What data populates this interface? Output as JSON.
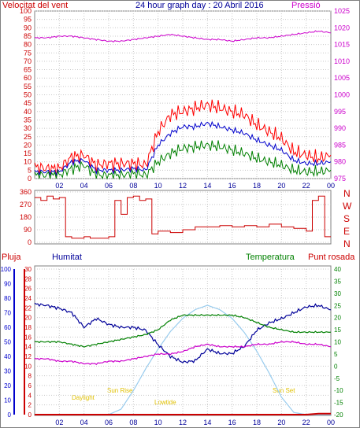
{
  "top_left_label": "Velocitat del vent",
  "title": "24 hour graph day : 20 Abril 2016",
  "top_right_label": "Pressió",
  "direction_letters": [
    "N",
    "W",
    "S",
    "E",
    "N"
  ],
  "lower_left_labels": [
    "Pluja",
    "Humitat"
  ],
  "lower_right_labels": [
    "Temperatura",
    "Punt rosada"
  ],
  "sun_labels": [
    "Daylight",
    "Sun Rise",
    "Lowtide",
    "Sun Set"
  ],
  "colors": {
    "wind_gust": "#ff0000",
    "wind_avg": "#0000cc",
    "wind_low": "#008000",
    "pressure": "#cc00cc",
    "direction": "#cc0000",
    "humidity": "#000099",
    "temperature": "#008000",
    "dewpoint": "#cc00cc",
    "solar": "#99ccee",
    "rain": "#cc0000",
    "grid": "#c8c8c8"
  },
  "chart_data": [
    {
      "type": "line",
      "name": "wind_pressure",
      "x_ticks": [
        "02",
        "04",
        "06",
        "08",
        "10",
        "12",
        "14",
        "16",
        "18",
        "20",
        "22",
        "00"
      ],
      "y_left_ticks": [
        "0",
        "5",
        "10",
        "15",
        "20",
        "25",
        "30",
        "35",
        "40",
        "45",
        "50",
        "55",
        "60",
        "65",
        "70",
        "75",
        "80",
        "85",
        "90",
        "95",
        "100"
      ],
      "y_right_ticks": [
        "975",
        "980",
        "985",
        "990",
        "995",
        "1000",
        "1005",
        "1010",
        "1015",
        "1020",
        "1025"
      ],
      "ylim_left": [
        0,
        100
      ],
      "ylim_right": [
        975,
        1025
      ],
      "x": [
        0,
        1,
        2,
        3,
        4,
        5,
        6,
        7,
        8,
        9,
        10,
        11,
        12,
        13,
        14,
        15,
        16,
        17,
        18,
        19,
        20,
        21,
        22,
        23,
        24
      ],
      "series": [
        {
          "key": "gust",
          "values": [
            7,
            6,
            6,
            13,
            14,
            8,
            9,
            9,
            9,
            8,
            28,
            38,
            40,
            42,
            44,
            42,
            40,
            38,
            32,
            28,
            24,
            16,
            14,
            12,
            14
          ]
        },
        {
          "key": "avg",
          "values": [
            4,
            4,
            4,
            10,
            11,
            5,
            5,
            5,
            6,
            5,
            20,
            27,
            31,
            31,
            33,
            31,
            29,
            27,
            23,
            20,
            17,
            11,
            9,
            9,
            10
          ]
        },
        {
          "key": "low",
          "values": [
            2,
            2,
            2,
            6,
            8,
            2,
            2,
            2,
            3,
            2,
            10,
            15,
            18,
            19,
            20,
            19,
            17,
            15,
            12,
            10,
            8,
            5,
            4,
            4,
            5
          ]
        },
        {
          "key": "pressure",
          "values": [
            1017,
            1017,
            1017.5,
            1017.5,
            1017,
            1016.5,
            1016,
            1016,
            1016.5,
            1017,
            1017.5,
            1018,
            1017.5,
            1017,
            1016.5,
            1016.5,
            1016,
            1016.5,
            1017,
            1017,
            1017.5,
            1018,
            1018.5,
            1019,
            1018.5
          ]
        }
      ]
    },
    {
      "type": "line",
      "name": "wind_direction",
      "y_ticks": [
        "0",
        "90",
        "180",
        "270",
        "360"
      ],
      "ylim": [
        0,
        360
      ],
      "x": [
        0,
        0.5,
        1,
        1.5,
        2,
        2.5,
        3,
        3.5,
        4,
        4.5,
        5,
        5.5,
        6,
        6.5,
        7,
        7.5,
        8,
        8.5,
        9,
        9.5,
        10,
        11,
        12,
        13,
        14,
        15,
        16,
        17,
        18,
        19,
        20,
        21,
        22,
        22.5,
        23,
        23.5,
        24
      ],
      "values": [
        320,
        300,
        330,
        310,
        320,
        40,
        30,
        30,
        40,
        30,
        30,
        30,
        40,
        300,
        200,
        320,
        330,
        300,
        310,
        60,
        80,
        70,
        90,
        110,
        110,
        120,
        110,
        120,
        110,
        130,
        110,
        100,
        80,
        300,
        330,
        40,
        40
      ]
    },
    {
      "type": "line",
      "name": "weather",
      "y_left_ticks": [
        "0",
        "10",
        "20",
        "30",
        "40",
        "50",
        "60",
        "70",
        "80",
        "90",
        "100"
      ],
      "y_rain_ticks": [
        "0",
        "2",
        "4",
        "6",
        "8",
        "10",
        "12",
        "14",
        "16",
        "18",
        "20",
        "22",
        "24",
        "26",
        "28",
        "30"
      ],
      "y_right_ticks": [
        "-20",
        "-15",
        "-10",
        "-5",
        "0",
        "5",
        "10",
        "15",
        "20",
        "25",
        "30",
        "35",
        "40"
      ],
      "ylim_humidity": [
        0,
        100
      ],
      "ylim_temperature": [
        -20,
        40
      ],
      "x": [
        0,
        1,
        2,
        3,
        4,
        5,
        6,
        7,
        8,
        9,
        10,
        11,
        12,
        13,
        14,
        15,
        16,
        17,
        18,
        19,
        20,
        21,
        22,
        23,
        24
      ],
      "series": [
        {
          "key": "humidity",
          "values": [
            76,
            75,
            73,
            70,
            60,
            66,
            62,
            60,
            60,
            58,
            48,
            40,
            36,
            37,
            45,
            42,
            42,
            47,
            58,
            63,
            66,
            70,
            74,
            75,
            72
          ]
        },
        {
          "key": "temperature",
          "values": [
            10,
            10,
            10,
            9,
            8,
            9,
            10,
            11,
            12,
            13,
            15,
            19,
            21,
            21,
            21,
            21,
            21,
            20,
            18,
            16,
            15,
            14,
            14,
            14,
            14
          ]
        },
        {
          "key": "dewpoint",
          "values": [
            3,
            3,
            2,
            2,
            1,
            1,
            2,
            2,
            3,
            4,
            5,
            5,
            6,
            8,
            9,
            8,
            8,
            8,
            9,
            9,
            10,
            10,
            9,
            9,
            8
          ]
        },
        {
          "key": "solar",
          "values": [
            0,
            0,
            0,
            0,
            0,
            0,
            0,
            0.05,
            0.22,
            0.42,
            0.6,
            0.76,
            0.88,
            0.96,
            1.0,
            0.96,
            0.88,
            0.75,
            0.58,
            0.38,
            0.16,
            0.02,
            0,
            0,
            0
          ]
        },
        {
          "key": "rain",
          "values": [
            0,
            0,
            0,
            0,
            0,
            0,
            0,
            0,
            0,
            0,
            0,
            0,
            0,
            0,
            0,
            0,
            0,
            0,
            0,
            0,
            0,
            0,
            0,
            0.3,
            0.3
          ]
        }
      ]
    }
  ]
}
